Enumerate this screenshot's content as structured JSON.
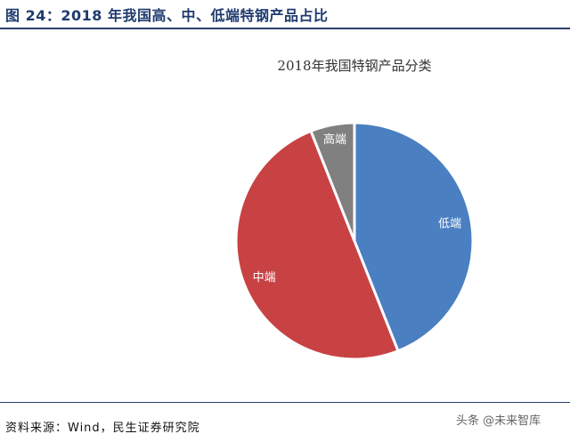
{
  "figure": {
    "title": "图 24：2018 年我国高、中、低端特钢产品占比",
    "source": "资料来源：Wind，民生证券研究院",
    "watermark": "头条 @未来智库"
  },
  "chart_data": {
    "type": "pie",
    "title": "2018年我国特钢产品分类",
    "start_angle": "12 o'clock, clockwise",
    "legend": "none",
    "slices": [
      {
        "label": "低端",
        "value": 44,
        "color": "#4a7fc1"
      },
      {
        "label": "中端",
        "value": 50,
        "color": "#c84244"
      },
      {
        "label": "高端",
        "value": 6,
        "color": "#808080"
      }
    ]
  }
}
